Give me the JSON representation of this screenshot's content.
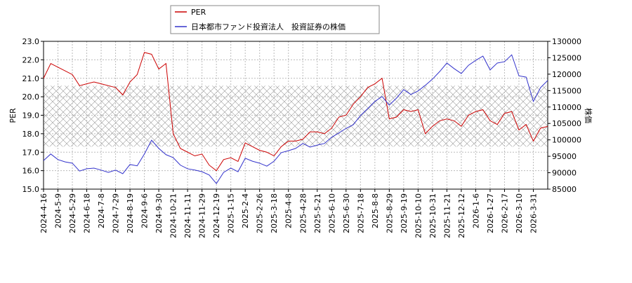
{
  "chart_data": {
    "type": "line",
    "y_label": "PER",
    "y2_label": "株価",
    "categories": [
      "2024-4-16",
      null,
      "2024-5-9",
      null,
      "2024-5-29",
      null,
      "2024-6-18",
      null,
      "2024-7-8",
      null,
      "2024-7-29",
      null,
      "2024-8-19",
      null,
      "2024-9-6",
      null,
      "2024-9-30",
      null,
      "2024-10-21",
      null,
      "2024-11-11",
      null,
      "2024-11-29",
      null,
      "2024-12-19",
      null,
      "2025-1-15",
      null,
      "2025-2-4",
      null,
      "2025-2-26",
      null,
      "2025-3-18",
      null,
      "2025-4-8",
      null,
      "2025-4-28",
      null,
      "2025-5-21",
      null,
      "2025-6-10",
      null,
      "2025-6-30",
      null,
      "2025-7-18",
      null,
      "2025-8-8",
      null,
      "2025-8-29",
      null,
      "2025-9-19",
      null,
      "2025-10-10",
      null,
      "2025-10-31",
      null,
      "2025-11-21",
      null,
      "2025-12-12",
      null,
      "2026-1-6",
      null,
      "2026-1-27",
      null,
      "2026-2-17",
      null,
      "2026-3-10",
      null,
      "2026-3-31",
      null,
      null
    ],
    "series": [
      {
        "name": "PER",
        "color": "#cc0000",
        "values": [
          21.0,
          21.8,
          21.6,
          21.4,
          21.2,
          20.6,
          20.7,
          20.8,
          20.7,
          20.6,
          20.5,
          20.1,
          20.8,
          21.2,
          22.4,
          22.3,
          21.5,
          21.8,
          18.0,
          17.2,
          17.0,
          16.8,
          16.9,
          16.3,
          16.0,
          16.6,
          16.7,
          16.5,
          17.5,
          17.3,
          17.1,
          17.0,
          16.8,
          17.3,
          17.6,
          17.6,
          17.7,
          18.1,
          18.1,
          18.0,
          18.3,
          18.9,
          19.0,
          19.6,
          20.0,
          20.5,
          20.7,
          21.0,
          18.8,
          18.9,
          19.3,
          19.2,
          19.3,
          18.0,
          18.4,
          18.7,
          18.8,
          18.7,
          18.4,
          19.0,
          19.2,
          19.3,
          18.7,
          18.5,
          19.1,
          19.2,
          18.2,
          18.5,
          17.6,
          18.3,
          18.4
        ]
      },
      {
        "name": "日本都市ファンド投資法人　投資証券の株価",
        "color": "#3333cc",
        "axis": "y2",
        "values": [
          93700,
          95700,
          94000,
          93300,
          92900,
          90500,
          91200,
          91400,
          90800,
          90100,
          90800,
          89700,
          92500,
          92100,
          95700,
          99900,
          97400,
          95500,
          94600,
          92300,
          91200,
          90800,
          90300,
          89300,
          86700,
          90100,
          91400,
          90300,
          94400,
          93500,
          92900,
          92000,
          93500,
          96100,
          96700,
          97400,
          98900,
          97800,
          98400,
          98900,
          100800,
          102100,
          103500,
          104600,
          107400,
          109500,
          111700,
          113200,
          110600,
          112700,
          115300,
          113800,
          114900,
          116600,
          118500,
          120800,
          123400,
          121700,
          120200,
          122700,
          124200,
          125500,
          121300,
          123400,
          123800,
          125900,
          119500,
          119100,
          111700,
          115900,
          118100
        ]
      }
    ],
    "ylim": [
      15,
      23
    ],
    "yticks": [
      {
        "value": 15,
        "label": "15.0"
      },
      {
        "value": 16,
        "label": "16.0"
      },
      {
        "value": 17,
        "label": "17.0"
      },
      {
        "value": 18,
        "label": "18.0"
      },
      {
        "value": 19,
        "label": "19.0"
      },
      {
        "value": 20,
        "label": "20.0"
      },
      {
        "value": 21,
        "label": "21.0"
      },
      {
        "value": 22,
        "label": "22.0"
      },
      {
        "value": 23,
        "label": "23.0"
      }
    ],
    "y2lim": [
      85000,
      130000
    ],
    "y2ticks": [
      85000,
      90000,
      95000,
      100000,
      105000,
      110000,
      115000,
      120000,
      125000,
      130000
    ],
    "shaded_range": [
      17.3,
      20.6
    ],
    "grid": true,
    "legend": "top-left"
  }
}
